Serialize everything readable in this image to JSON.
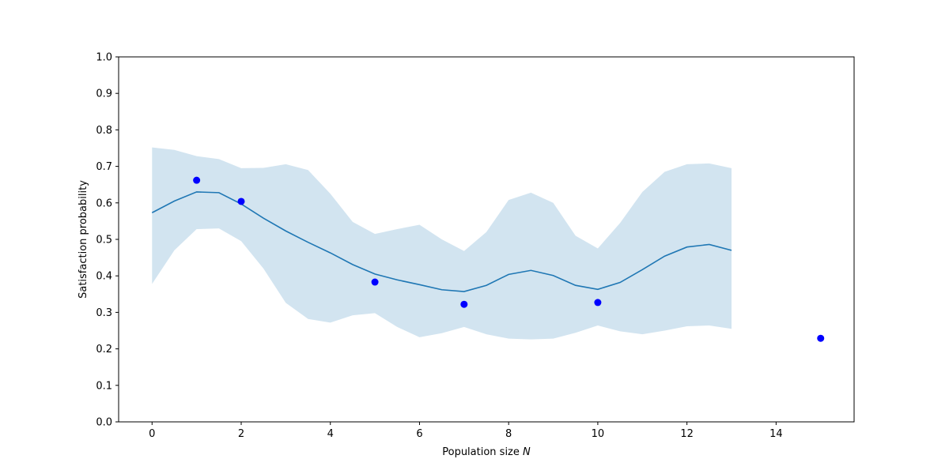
{
  "chart_data": {
    "type": "line",
    "title": "",
    "xlabel": "Population size ",
    "xlabel_var": "N",
    "ylabel": "Satisfaction probability",
    "xlim": [
      -0.75,
      15.75
    ],
    "ylim": [
      0,
      1
    ],
    "xticks": [
      0,
      2,
      4,
      6,
      8,
      10,
      12,
      14
    ],
    "xtick_labels": [
      "0",
      "2",
      "4",
      "6",
      "8",
      "10",
      "12",
      "14"
    ],
    "yticks": [
      0,
      0.1,
      0.2,
      0.3,
      0.4,
      0.5,
      0.6,
      0.7,
      0.8,
      0.9,
      1.0
    ],
    "ytick_labels": [
      "0.0",
      "0.1",
      "0.2",
      "0.3",
      "0.4",
      "0.5",
      "0.6",
      "0.7",
      "0.8",
      "0.9",
      "1.0"
    ],
    "grid": false,
    "mean_line": {
      "color": "#1f77b4",
      "points": [
        [
          0,
          0.573
        ],
        [
          0.5,
          0.605
        ],
        [
          1,
          0.63
        ],
        [
          1.5,
          0.628
        ],
        [
          2,
          0.597
        ],
        [
          2.5,
          0.558
        ],
        [
          3,
          0.523
        ],
        [
          3.5,
          0.492
        ],
        [
          4,
          0.463
        ],
        [
          4.5,
          0.431
        ],
        [
          5,
          0.405
        ],
        [
          5.5,
          0.389
        ],
        [
          6,
          0.376
        ],
        [
          6.5,
          0.362
        ],
        [
          7,
          0.357
        ],
        [
          7.5,
          0.374
        ],
        [
          8,
          0.404
        ],
        [
          8.5,
          0.415
        ],
        [
          9,
          0.401
        ],
        [
          9.5,
          0.374
        ],
        [
          10,
          0.363
        ],
        [
          10.5,
          0.382
        ],
        [
          11,
          0.417
        ],
        [
          11.5,
          0.454
        ],
        [
          12,
          0.479
        ],
        [
          12.5,
          0.486
        ],
        [
          13,
          0.47
        ]
      ]
    },
    "confidence_band": {
      "color": "#1f77b4",
      "opacity": 0.2,
      "upper": [
        [
          0,
          0.752
        ],
        [
          0.5,
          0.745
        ],
        [
          1,
          0.728
        ],
        [
          1.5,
          0.72
        ],
        [
          2,
          0.695
        ],
        [
          2.5,
          0.696
        ],
        [
          3,
          0.706
        ],
        [
          3.5,
          0.69
        ],
        [
          4,
          0.625
        ],
        [
          4.5,
          0.548
        ],
        [
          5,
          0.515
        ],
        [
          5.5,
          0.528
        ],
        [
          6,
          0.54
        ],
        [
          6.5,
          0.5
        ],
        [
          7,
          0.468
        ],
        [
          7.5,
          0.52
        ],
        [
          8,
          0.608
        ],
        [
          8.5,
          0.628
        ],
        [
          9,
          0.6
        ],
        [
          9.5,
          0.51
        ],
        [
          10,
          0.475
        ],
        [
          10.5,
          0.545
        ],
        [
          11,
          0.63
        ],
        [
          11.5,
          0.685
        ],
        [
          12,
          0.706
        ],
        [
          12.5,
          0.708
        ],
        [
          13,
          0.695
        ]
      ],
      "lower": [
        [
          0,
          0.378
        ],
        [
          0.5,
          0.47
        ],
        [
          1,
          0.528
        ],
        [
          1.5,
          0.53
        ],
        [
          2,
          0.495
        ],
        [
          2.5,
          0.42
        ],
        [
          3,
          0.326
        ],
        [
          3.5,
          0.282
        ],
        [
          4,
          0.272
        ],
        [
          4.5,
          0.292
        ],
        [
          5,
          0.298
        ],
        [
          5.5,
          0.26
        ],
        [
          6,
          0.232
        ],
        [
          6.5,
          0.243
        ],
        [
          7,
          0.26
        ],
        [
          7.5,
          0.24
        ],
        [
          8,
          0.228
        ],
        [
          8.5,
          0.226
        ],
        [
          9,
          0.228
        ],
        [
          9.5,
          0.244
        ],
        [
          10,
          0.264
        ],
        [
          10.5,
          0.248
        ],
        [
          11,
          0.24
        ],
        [
          11.5,
          0.25
        ],
        [
          12,
          0.262
        ],
        [
          12.5,
          0.264
        ],
        [
          13,
          0.255
        ]
      ]
    },
    "scatter": {
      "color": "#0000ff",
      "x": [
        1,
        2,
        5,
        7,
        10,
        15
      ],
      "y": [
        0.662,
        0.604,
        0.383,
        0.322,
        0.327,
        0.229
      ]
    }
  }
}
